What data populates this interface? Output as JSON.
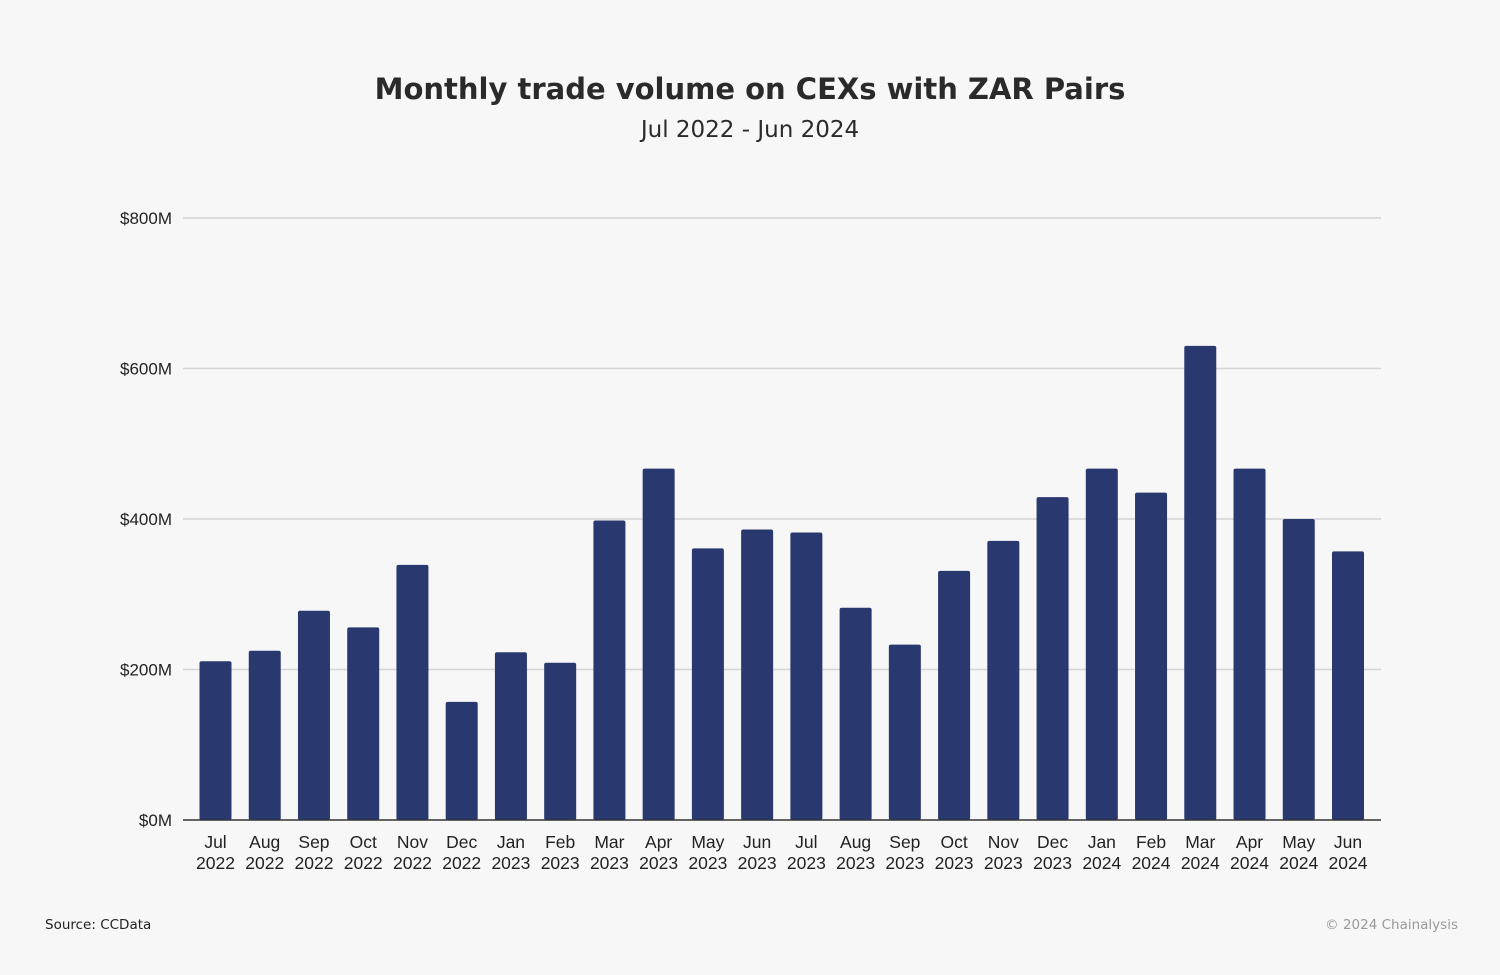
{
  "chart_data": {
    "type": "bar",
    "title": "Monthly trade volume on CEXs with ZAR Pairs",
    "subtitle": "Jul 2022 - Jun 2024",
    "categories": [
      [
        "Jul",
        "2022"
      ],
      [
        "Aug",
        "2022"
      ],
      [
        "Sep",
        "2022"
      ],
      [
        "Oct",
        "2022"
      ],
      [
        "Nov",
        "2022"
      ],
      [
        "Dec",
        "2022"
      ],
      [
        "Jan",
        "2023"
      ],
      [
        "Feb",
        "2023"
      ],
      [
        "Mar",
        "2023"
      ],
      [
        "Apr",
        "2023"
      ],
      [
        "May",
        "2023"
      ],
      [
        "Jun",
        "2023"
      ],
      [
        "Jul",
        "2023"
      ],
      [
        "Aug",
        "2023"
      ],
      [
        "Sep",
        "2023"
      ],
      [
        "Oct",
        "2023"
      ],
      [
        "Nov",
        "2023"
      ],
      [
        "Dec",
        "2023"
      ],
      [
        "Jan",
        "2024"
      ],
      [
        "Feb",
        "2024"
      ],
      [
        "Mar",
        "2024"
      ],
      [
        "Apr",
        "2024"
      ],
      [
        "May",
        "2024"
      ],
      [
        "Jun",
        "2024"
      ]
    ],
    "values": [
      211,
      225,
      278,
      256,
      339,
      157,
      223,
      209,
      398,
      467,
      361,
      386,
      382,
      282,
      233,
      331,
      371,
      429,
      467,
      435,
      630,
      467,
      400,
      357
    ],
    "unit": "$M",
    "ylim": [
      0,
      800
    ],
    "yticks": [
      0,
      200,
      400,
      600,
      800
    ],
    "ytick_labels": [
      "$0M",
      "$200M",
      "$400M",
      "$600M",
      "$800M"
    ],
    "xlabel": "",
    "ylabel": "",
    "bar_color": "#2a3870",
    "grid": true
  },
  "footer": {
    "source": "Source: CCData",
    "copyright": "© 2024 Chainalysis"
  }
}
